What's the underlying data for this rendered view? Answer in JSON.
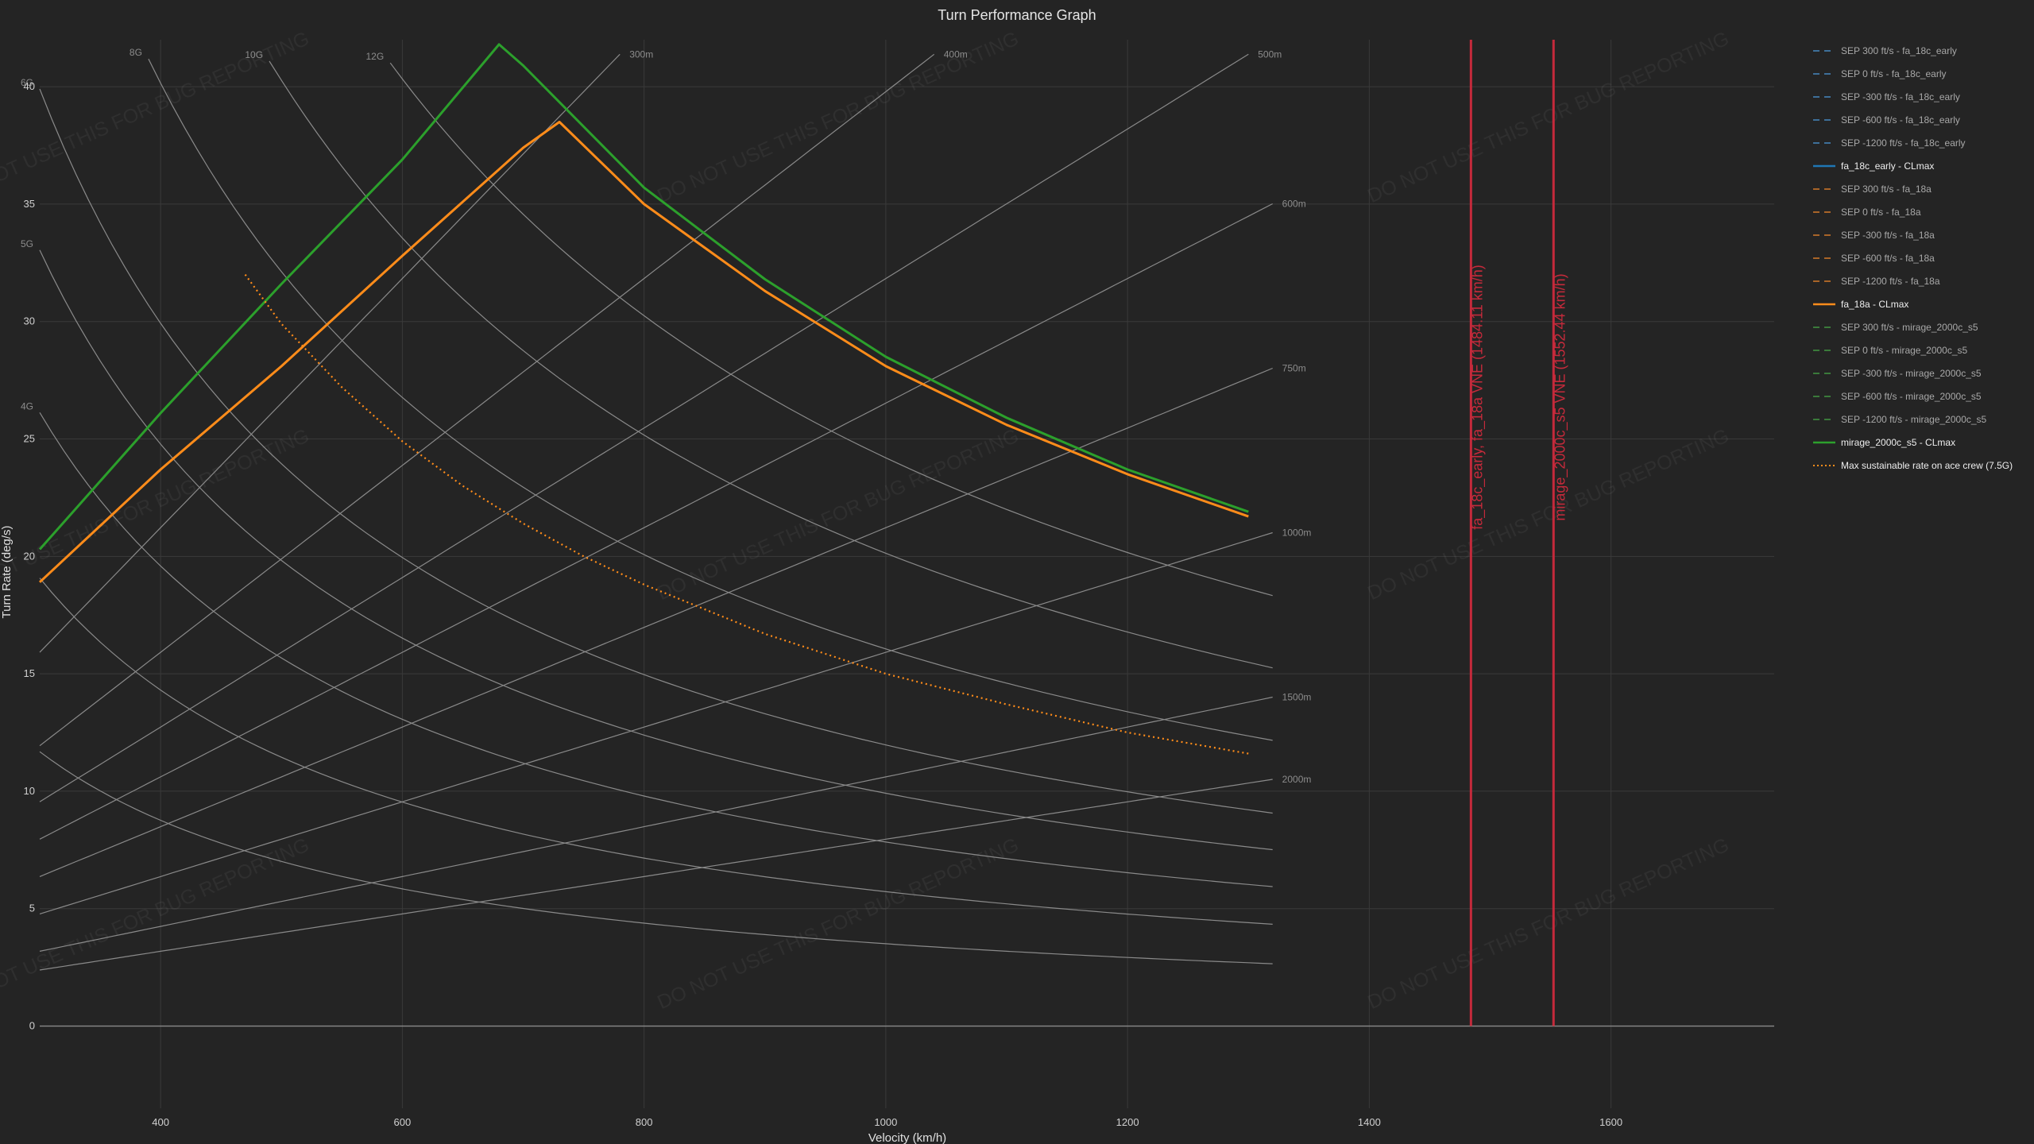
{
  "chart_data": {
    "type": "line",
    "title": "Turn Performance Graph",
    "xlabel": "Velocity (km/h)",
    "ylabel": "Turn Rate (deg/s)",
    "xlim": [
      300,
      1735
    ],
    "ylim": [
      -3.5,
      42.0
    ],
    "x_ticks": [
      400,
      600,
      800,
      1000,
      1200,
      1400,
      1600
    ],
    "y_ticks": [
      0,
      5,
      10,
      15,
      20,
      25,
      30,
      35,
      40
    ],
    "grid": true,
    "legend_position": "right",
    "load_factor_lines": [
      {
        "label": "12G",
        "n": 12
      },
      {
        "label": "10G",
        "n": 10
      },
      {
        "label": "8G",
        "n": 8
      },
      {
        "label": "6G",
        "n": 6
      },
      {
        "label": "5G",
        "n": 5
      },
      {
        "label": "4G",
        "n": 4
      },
      {
        "label": "",
        "n": 3
      },
      {
        "label": "",
        "n": 2
      }
    ],
    "radius_lines": [
      {
        "label": "300m",
        "r": 300
      },
      {
        "label": "400m",
        "r": 400
      },
      {
        "label": "500m",
        "r": 500
      },
      {
        "label": "600m",
        "r": 600
      },
      {
        "label": "750m",
        "r": 750
      },
      {
        "label": "1000m",
        "r": 1000
      },
      {
        "label": "1500m",
        "r": 1500
      },
      {
        "label": "2000m",
        "r": 2000
      }
    ],
    "series": [
      {
        "name": "SEP 300 ft/s - fa_18c_early",
        "color": "#3d6f99",
        "style": "dashed",
        "x": [],
        "y": []
      },
      {
        "name": "SEP 0 ft/s - fa_18c_early",
        "color": "#3d6f99",
        "style": "dashed",
        "x": [],
        "y": []
      },
      {
        "name": "SEP -300 ft/s - fa_18c_early",
        "color": "#3d6f99",
        "style": "dashed",
        "x": [],
        "y": []
      },
      {
        "name": "SEP -600 ft/s - fa_18c_early",
        "color": "#3d6f99",
        "style": "dashed",
        "x": [],
        "y": []
      },
      {
        "name": "SEP -1200 ft/s - fa_18c_early",
        "color": "#3d6f99",
        "style": "dashed",
        "x": [],
        "y": []
      },
      {
        "name": "fa_18c_early - CLmax",
        "color": "#1f77b4",
        "style": "solid",
        "x": [],
        "y": []
      },
      {
        "name": "SEP 300 ft/s - fa_18a",
        "color": "#a86428",
        "style": "dashed",
        "x": [],
        "y": []
      },
      {
        "name": "SEP 0 ft/s - fa_18a",
        "color": "#a86428",
        "style": "dashed",
        "x": [],
        "y": []
      },
      {
        "name": "SEP -300 ft/s - fa_18a",
        "color": "#a86428",
        "style": "dashed",
        "x": [],
        "y": []
      },
      {
        "name": "SEP -600 ft/s - fa_18a",
        "color": "#a86428",
        "style": "dashed",
        "x": [],
        "y": []
      },
      {
        "name": "SEP -1200 ft/s - fa_18a",
        "color": "#a86428",
        "style": "dashed",
        "x": [],
        "y": []
      },
      {
        "name": "fa_18a - CLmax",
        "color": "#ff8c1a",
        "style": "solid",
        "x": [
          300,
          400,
          500,
          600,
          700,
          730,
          800,
          900,
          1000,
          1100,
          1200,
          1300
        ],
        "y": [
          18.9,
          23.7,
          28.1,
          32.8,
          37.4,
          38.5,
          35.0,
          31.3,
          28.1,
          25.6,
          23.5,
          21.7
        ]
      },
      {
        "name": "SEP 300 ft/s - mirage_2000c_s5",
        "color": "#3a7a3a",
        "style": "dashed",
        "x": [],
        "y": []
      },
      {
        "name": "SEP 0 ft/s - mirage_2000c_s5",
        "color": "#3a7a3a",
        "style": "dashed",
        "x": [],
        "y": []
      },
      {
        "name": "SEP -300 ft/s - mirage_2000c_s5",
        "color": "#3a7a3a",
        "style": "dashed",
        "x": [],
        "y": []
      },
      {
        "name": "SEP -600 ft/s - mirage_2000c_s5",
        "color": "#3a7a3a",
        "style": "dashed",
        "x": [],
        "y": []
      },
      {
        "name": "SEP -1200 ft/s - mirage_2000c_s5",
        "color": "#3a7a3a",
        "style": "dashed",
        "x": [],
        "y": []
      },
      {
        "name": "mirage_2000c_s5 - CLmax",
        "color": "#2ca02c",
        "style": "solid",
        "x": [
          300,
          400,
          500,
          600,
          680,
          700,
          800,
          900,
          1000,
          1100,
          1200,
          1300
        ],
        "y": [
          20.3,
          26.1,
          31.6,
          36.9,
          41.8,
          40.9,
          35.7,
          31.8,
          28.5,
          25.9,
          23.7,
          21.9
        ]
      },
      {
        "name": "Max sustainable rate on ace crew (7.5G)",
        "color": "#ff8c1a",
        "style": "dotted",
        "x": [
          470,
          500,
          550,
          600,
          650,
          700,
          750,
          800,
          900,
          1000,
          1100,
          1200,
          1300
        ],
        "y": [
          32.0,
          29.9,
          27.2,
          24.9,
          23.0,
          21.4,
          20.0,
          18.8,
          16.7,
          15.0,
          13.7,
          12.5,
          11.6
        ]
      }
    ],
    "vertical_lines": [
      {
        "label": "fa_18c_early, fa_18a VNE (1484.11 km/h)",
        "x": 1484.11,
        "color": "#c52a3b"
      },
      {
        "label": "mirage_2000c_s5 VNE (1552.44 km/h)",
        "x": 1552.44,
        "color": "#c52a3b"
      }
    ]
  },
  "watermark": "DO NOT USE THIS FOR BUG REPORTING"
}
